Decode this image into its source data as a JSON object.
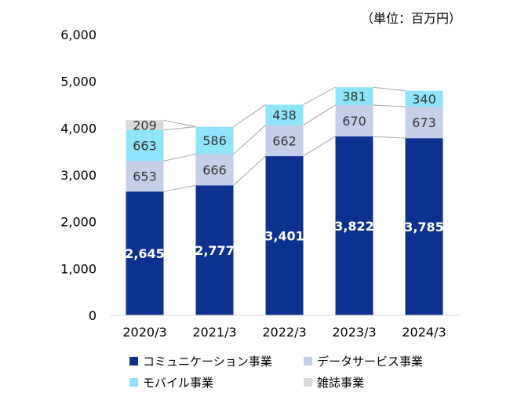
{
  "unit_label": "（単位：百万円）",
  "colors": {
    "communication": "#0d3190",
    "data_service": "#c5cfe9",
    "mobile": "#8fe3fa",
    "magazine": "#d9d9d9",
    "connector": "#a6a6a6"
  },
  "legend": [
    {
      "key": "communication",
      "label": "コミュニケーション事業"
    },
    {
      "key": "data_service",
      "label": "データサービス事業"
    },
    {
      "key": "mobile",
      "label": "モバイル事業"
    },
    {
      "key": "magazine",
      "label": "雑誌事業"
    }
  ],
  "chart_data": {
    "type": "bar",
    "stacked": true,
    "categories": [
      "2020/3",
      "2021/3",
      "2022/3",
      "2023/3",
      "2024/3"
    ],
    "series": [
      {
        "key": "communication",
        "name": "コミュニケーション事業",
        "values": [
          2645,
          2777,
          3401,
          3822,
          3785
        ],
        "labels": [
          "2,645",
          "2,777",
          "3,401",
          "3,822",
          "3,785"
        ]
      },
      {
        "key": "data_service",
        "name": "データサービス事業",
        "values": [
          653,
          666,
          662,
          670,
          673
        ],
        "labels": [
          "653",
          "666",
          "662",
          "670",
          "673"
        ]
      },
      {
        "key": "mobile",
        "name": "モバイル事業",
        "values": [
          663,
          586,
          438,
          381,
          340
        ],
        "labels": [
          "663",
          "586",
          "438",
          "381",
          "340"
        ]
      },
      {
        "key": "magazine",
        "name": "雑誌事業",
        "values": [
          209,
          0,
          0,
          0,
          0
        ],
        "labels": [
          "209",
          "",
          "",
          "",
          ""
        ]
      }
    ],
    "ylim": [
      0,
      6000
    ],
    "yticks": [
      0,
      1000,
      2000,
      3000,
      4000,
      5000,
      6000
    ],
    "ytick_labels": [
      "0",
      "1,000",
      "2,000",
      "3,000",
      "4,000",
      "5,000",
      "6,000"
    ],
    "grid": false,
    "legend_position": "bottom",
    "series_connectors": true
  }
}
